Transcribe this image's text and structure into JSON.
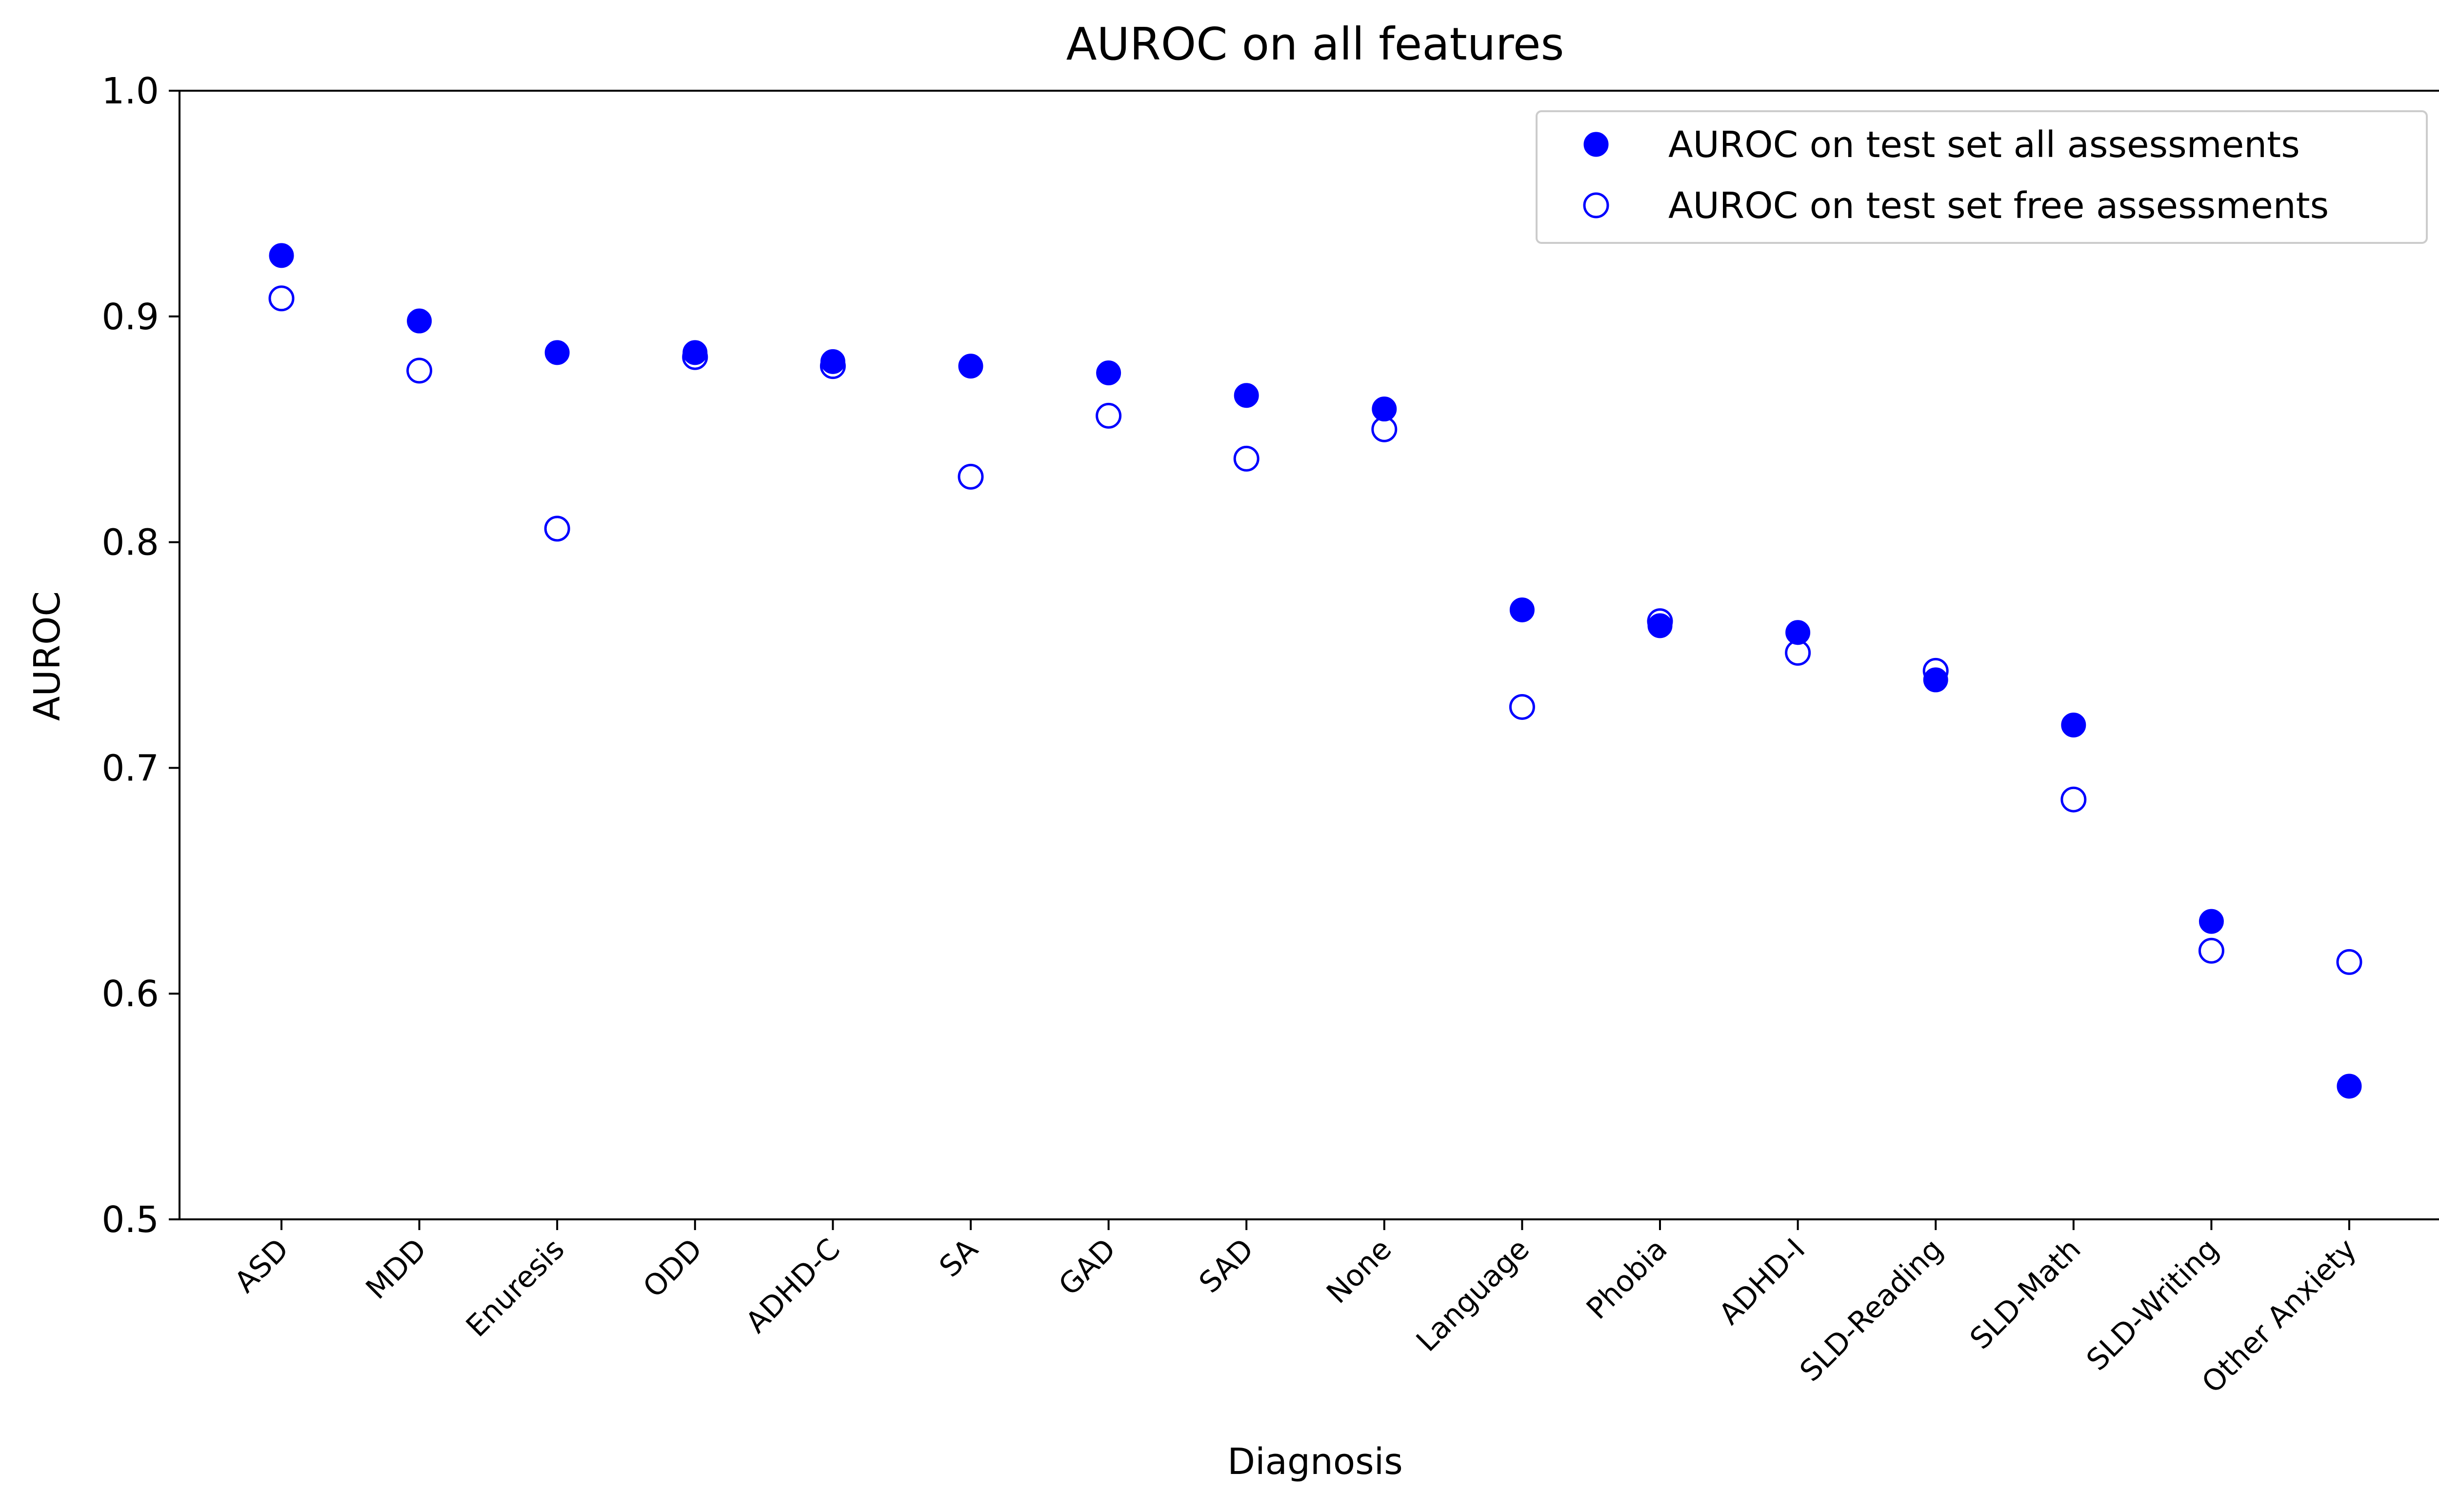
{
  "chart_data": {
    "type": "scatter",
    "title": "AUROC on all features",
    "xlabel": "Diagnosis",
    "ylabel": "AUROC",
    "categories": [
      "ASD",
      "MDD",
      "Enuresis",
      "ODD",
      "ADHD-C",
      "SA",
      "GAD",
      "SAD",
      "None",
      "Language",
      "Phobia",
      "ADHD-I",
      "SLD-Reading",
      "SLD-Math",
      "SLD-Writing",
      "Other Anxiety"
    ],
    "ylim": [
      0.5,
      1.0
    ],
    "yticks": [
      "0.5",
      "0.6",
      "0.7",
      "0.8",
      "0.9",
      "1.0"
    ],
    "grid": false,
    "legend_position": "top-right",
    "series": [
      {
        "name": "AUROC on test set all assessments",
        "marker": "filled-circle",
        "color": "#0000ff",
        "values": [
          0.927,
          0.898,
          0.884,
          0.884,
          0.88,
          0.878,
          0.875,
          0.865,
          0.859,
          0.77,
          0.763,
          0.76,
          0.739,
          0.719,
          0.632,
          0.559
        ]
      },
      {
        "name": "AUROC on test set free assessments",
        "marker": "open-circle",
        "color": "#0000ff",
        "values": [
          0.908,
          0.876,
          0.806,
          0.882,
          0.878,
          0.829,
          0.856,
          0.837,
          0.85,
          0.727,
          0.765,
          0.751,
          0.743,
          0.686,
          0.619,
          0.614
        ]
      }
    ]
  }
}
